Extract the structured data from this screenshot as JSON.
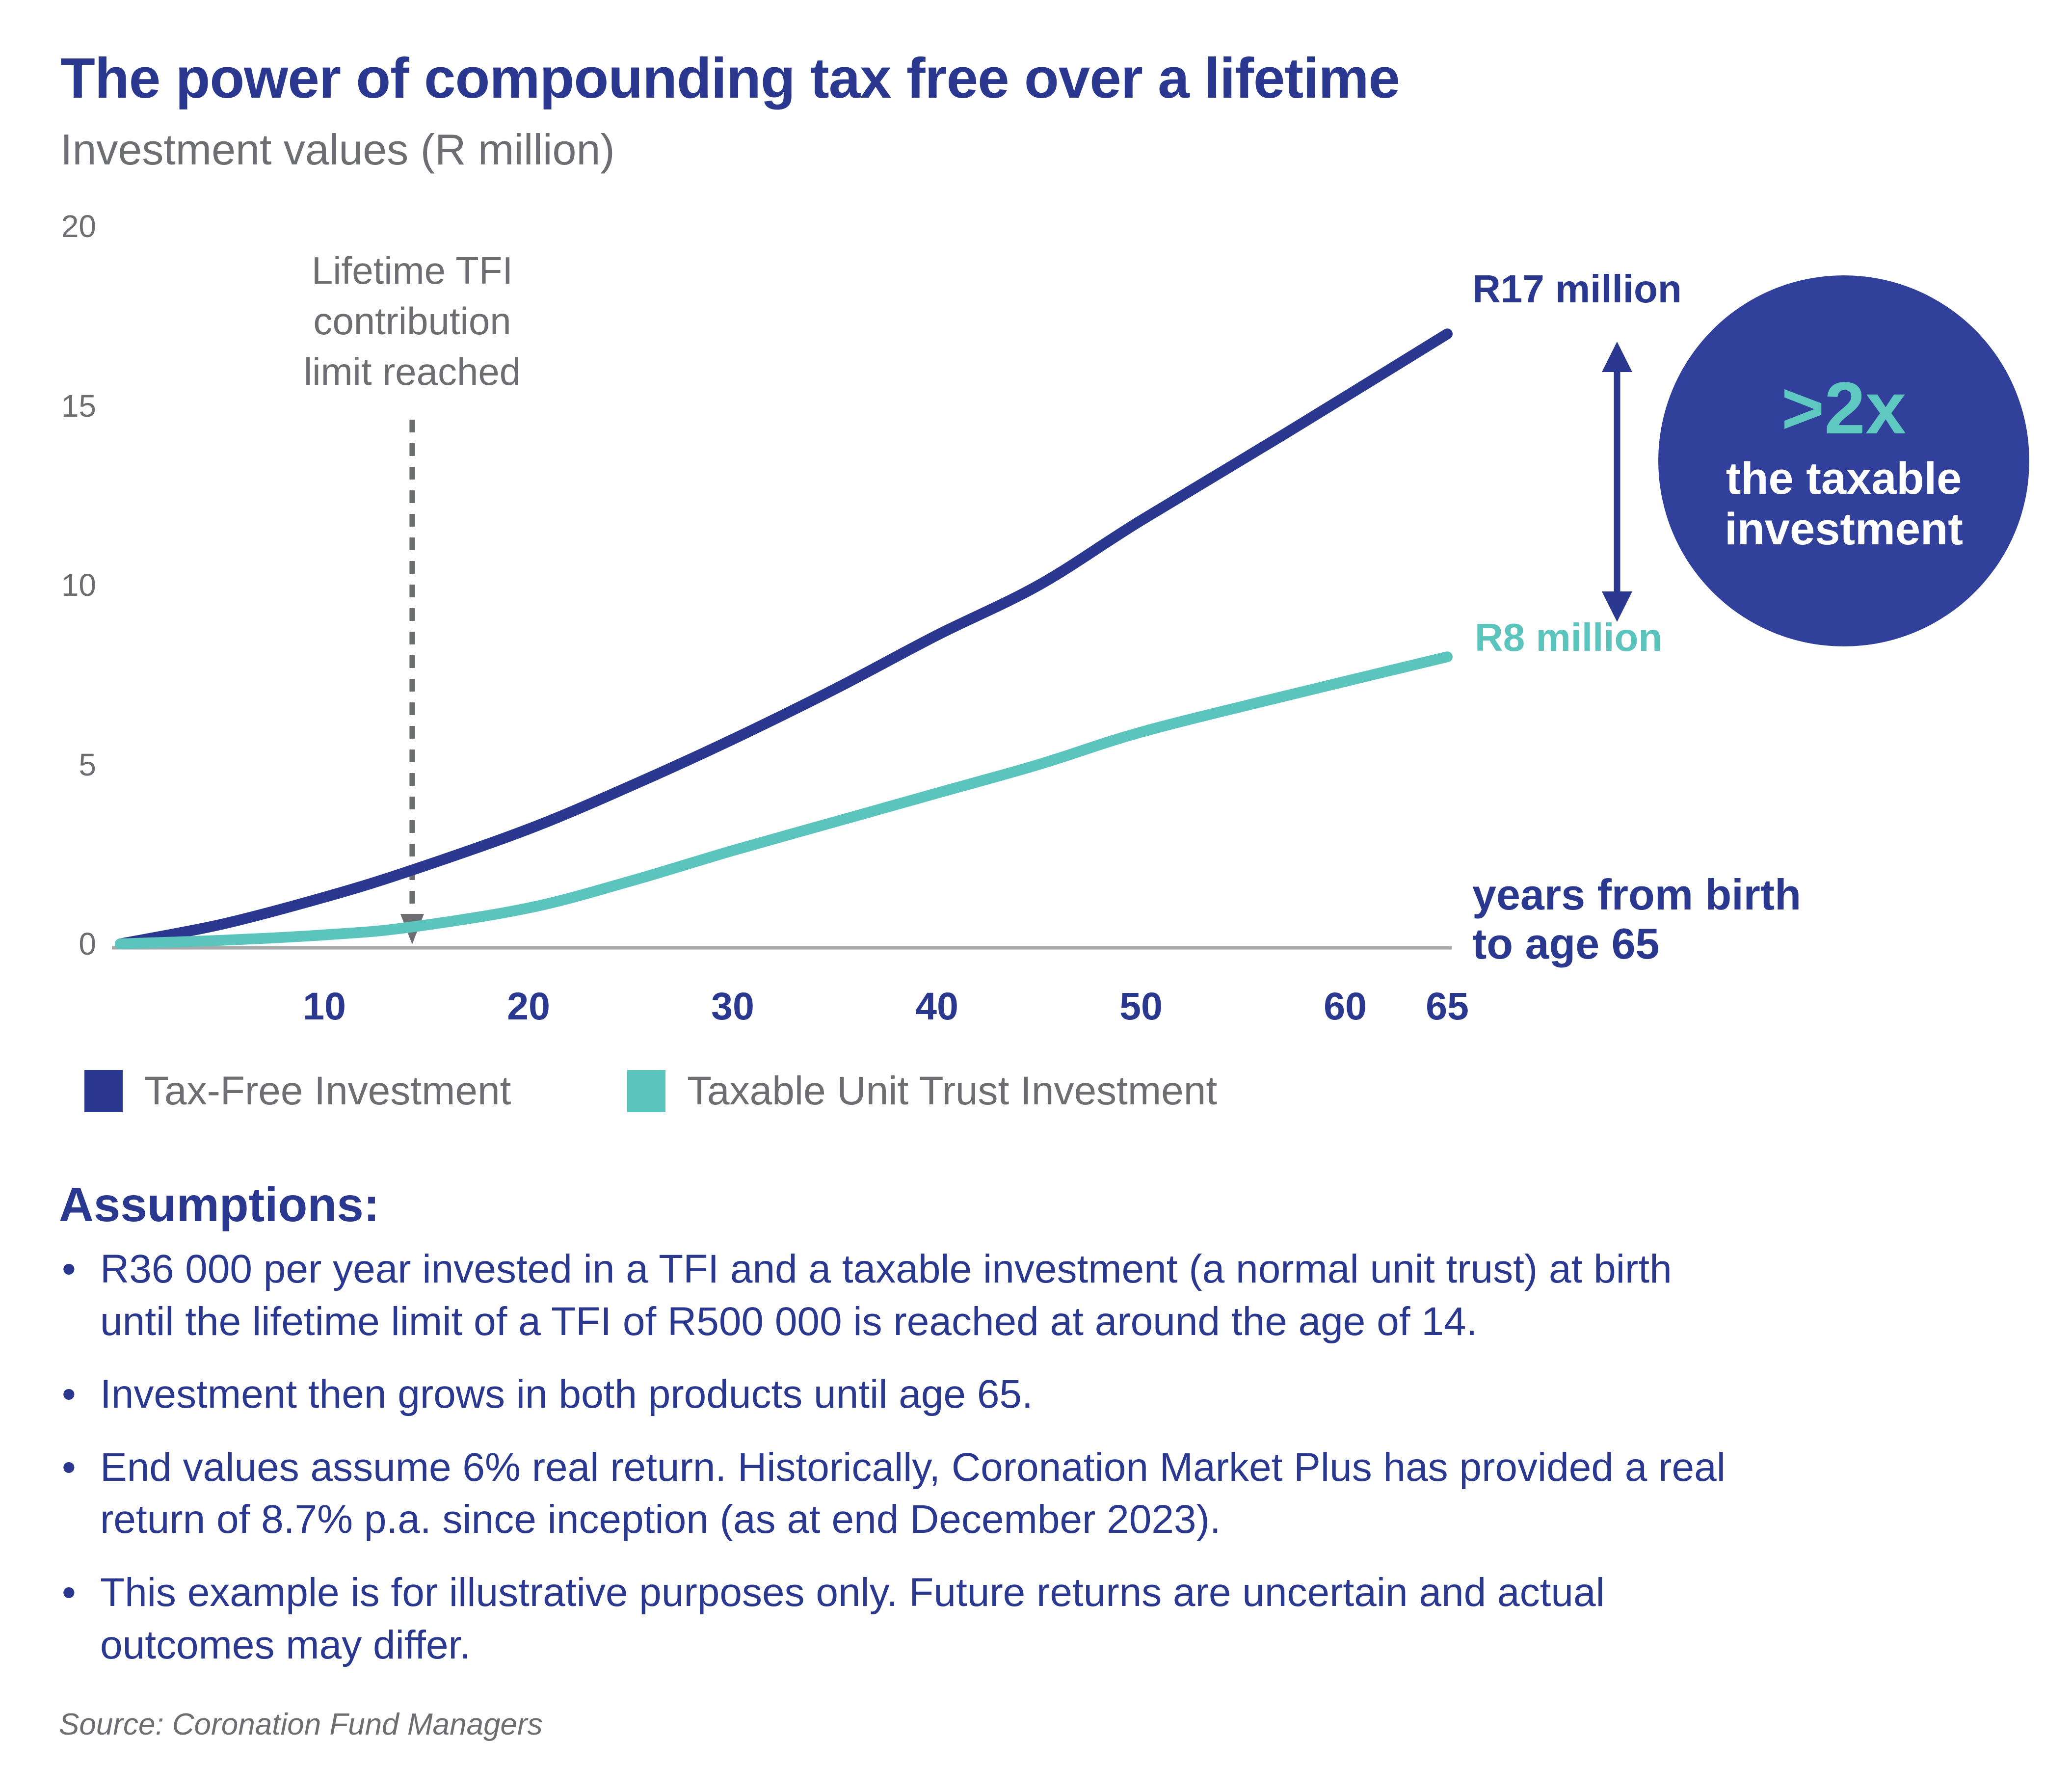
{
  "title": "The power of compounding tax free over a lifetime",
  "subtitle": "Investment values (R million)",
  "chart_data": {
    "type": "line",
    "x": [
      0,
      5,
      10,
      14,
      20,
      25,
      30,
      35,
      40,
      45,
      50,
      57,
      65
    ],
    "series": [
      {
        "name": "Tax-Free Investment",
        "color": "#2B3890",
        "values": [
          0,
          0.55,
          1.3,
          2.0,
          3.2,
          4.4,
          5.7,
          7.1,
          8.6,
          10.0,
          11.8,
          14.2,
          17
        ],
        "end_label": "R17 million",
        "end_value_millions": 17
      },
      {
        "name": "Taxable Unit Trust Investment",
        "color": "#5BC5BD",
        "values": [
          0,
          0.1,
          0.25,
          0.45,
          1.0,
          1.75,
          2.6,
          3.4,
          4.2,
          5.0,
          5.9,
          6.9,
          8
        ],
        "end_label": "R8 million",
        "end_value_millions": 8
      }
    ],
    "xlabel_line1": "years from birth",
    "xlabel_line2": "to age 65",
    "ylabel": "Investment values (R million)",
    "xlim": [
      0,
      65
    ],
    "ylim": [
      0,
      20
    ],
    "y_ticks": [
      20,
      15,
      10,
      5,
      0
    ],
    "x_ticks": [
      10,
      20,
      30,
      40,
      50,
      60,
      65
    ],
    "grid": false,
    "legend_position": "bottom-left",
    "annotation": {
      "line1": "Lifetime TFI",
      "line2": "contribution",
      "line3": "limit reached",
      "x_year": 14.3
    }
  },
  "badge": {
    "value": ">2x",
    "line2": "the taxable",
    "line3": "investment",
    "bg": "#31409B",
    "value_color": "#5FC8C0",
    "text_color": "#FFFFFF"
  },
  "legend": [
    {
      "label": "Tax-Free Investment",
      "color": "#2B3890"
    },
    {
      "label": "Taxable Unit Trust Investment",
      "color": "#5BC5BD"
    }
  ],
  "assumptions": {
    "heading": "Assumptions:",
    "bullet_char": "•",
    "bullets": [
      "R36 000 per year invested in a TFI and a taxable investment (a normal unit trust) at birth until the lifetime limit of a TFI of R500 000 is reached at around the age of 14.",
      "Investment then grows in both products until age 65.",
      "End values assume 6% real return. Historically, Coronation Market Plus has provided a real return of 8.7% p.a. since inception (as at end December 2023).",
      "This example is for illustrative purposes only. Future returns are uncertain and actual outcomes may differ."
    ]
  },
  "source": "Source: Coronation Fund Managers",
  "colors": {
    "primary_blue": "#2B3890",
    "teal": "#5BC5BD",
    "text_gray": "#6D6E71",
    "axis_gray": "#A7A9AC",
    "background": "#FFFFFF"
  }
}
